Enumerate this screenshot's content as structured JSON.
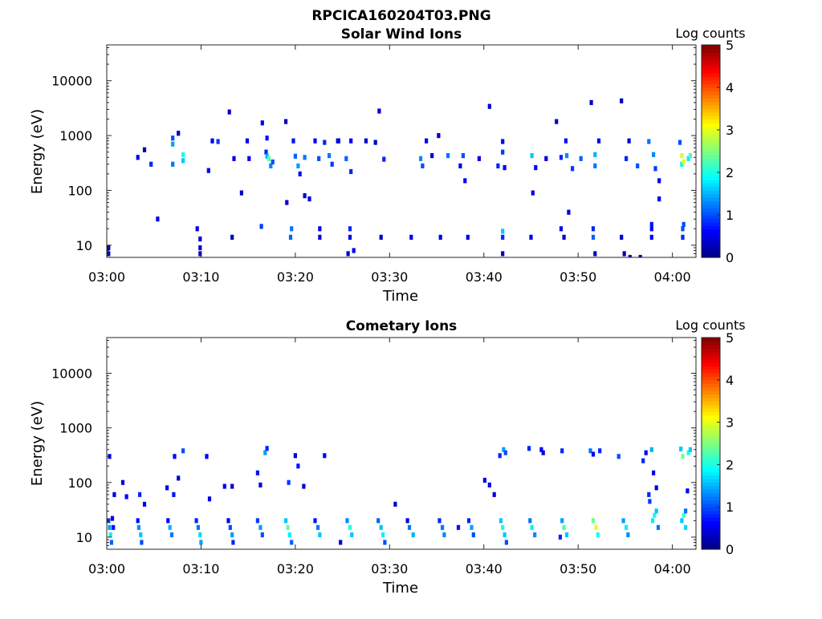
{
  "title": "RPCICA160204T03.PNG",
  "chart_data": [
    {
      "type": "heatmap",
      "title": "Solar Wind Ions",
      "xlabel": "Time",
      "ylabel": "Energy (eV)",
      "x_ticks": [
        "03:00",
        "03:10",
        "03:20",
        "03:30",
        "03:40",
        "03:50",
        "04:00"
      ],
      "x_tick_minutes": [
        0,
        10,
        20,
        30,
        40,
        50,
        60
      ],
      "xlim_minutes": [
        0,
        62.5
      ],
      "y_scale": "log",
      "y_ticks": [
        "10",
        "100",
        "1000",
        "10000"
      ],
      "y_tick_values": [
        10,
        100,
        1000,
        10000
      ],
      "ylim": [
        6,
        45000
      ],
      "colorbar": {
        "label": "Log counts",
        "ticks": [
          "0",
          "1",
          "2",
          "3",
          "4",
          "5"
        ],
        "range": [
          0,
          5
        ],
        "colormap": "jet"
      },
      "cells": [
        [
          0.2,
          7,
          0.3
        ],
        [
          0.2,
          9,
          0.3
        ],
        [
          9.9,
          7,
          0.4
        ],
        [
          9.9,
          9,
          0.4
        ],
        [
          9.9,
          13,
          0.4
        ],
        [
          9.6,
          20,
          0.5
        ],
        [
          13.3,
          14,
          0.3
        ],
        [
          16.4,
          22,
          0.9
        ],
        [
          19.5,
          14,
          1.1
        ],
        [
          19.6,
          20,
          1.2
        ],
        [
          22.6,
          14,
          0.5
        ],
        [
          22.6,
          20,
          0.5
        ],
        [
          25.6,
          7,
          0.3
        ],
        [
          25.8,
          20,
          0.8
        ],
        [
          25.8,
          14,
          0.6
        ],
        [
          29.1,
          14,
          0.4
        ],
        [
          32.3,
          14,
          0.5
        ],
        [
          35.4,
          14,
          0.6
        ],
        [
          38.3,
          14,
          0.5
        ],
        [
          42.0,
          14,
          0.8
        ],
        [
          42.0,
          18,
          1.6
        ],
        [
          42.0,
          7,
          0.3
        ],
        [
          45.0,
          14,
          0.5
        ],
        [
          48.2,
          20,
          0.6
        ],
        [
          48.5,
          14,
          0.4
        ],
        [
          51.6,
          20,
          0.8
        ],
        [
          51.6,
          14,
          1.1
        ],
        [
          51.8,
          7,
          0.3
        ],
        [
          54.6,
          14,
          0.4
        ],
        [
          54.9,
          7,
          0.3
        ],
        [
          57.8,
          20,
          0.6
        ],
        [
          57.8,
          24,
          0.7
        ],
        [
          57.8,
          14,
          0.6
        ],
        [
          61.1,
          20,
          1.0
        ],
        [
          61.1,
          14,
          0.8
        ],
        [
          61.2,
          24,
          1.0
        ],
        [
          3.3,
          400,
          0.5
        ],
        [
          4.0,
          550,
          0.3
        ],
        [
          4.7,
          300,
          0.8
        ],
        [
          7.0,
          900,
          1.0
        ],
        [
          7.0,
          700,
          1.4
        ],
        [
          7.0,
          300,
          1.2
        ],
        [
          7.6,
          1100,
          0.4
        ],
        [
          8.1,
          350,
          1.6
        ],
        [
          8.1,
          450,
          2.0
        ],
        [
          10.8,
          230,
          0.6
        ],
        [
          11.2,
          800,
          0.6
        ],
        [
          11.8,
          780,
          0.9
        ],
        [
          13.0,
          2700,
          0.4
        ],
        [
          13.5,
          380,
          0.5
        ],
        [
          14.3,
          90,
          0.4
        ],
        [
          14.9,
          800,
          0.6
        ],
        [
          15.1,
          380,
          0.6
        ],
        [
          16.5,
          1700,
          0.5
        ],
        [
          16.9,
          500,
          0.8
        ],
        [
          17.0,
          420,
          1.5
        ],
        [
          17.2,
          380,
          2.3
        ],
        [
          17.4,
          280,
          1.3
        ],
        [
          17.6,
          330,
          1.0
        ],
        [
          17.0,
          900,
          0.7
        ],
        [
          19.0,
          1800,
          0.3
        ],
        [
          19.1,
          60,
          0.4
        ],
        [
          19.8,
          800,
          0.7
        ],
        [
          20.0,
          420,
          1.1
        ],
        [
          20.3,
          280,
          1.4
        ],
        [
          20.5,
          200,
          0.7
        ],
        [
          21.0,
          80,
          0.4
        ],
        [
          21.0,
          400,
          1.2
        ],
        [
          21.5,
          70,
          0.5
        ],
        [
          22.1,
          800,
          0.6
        ],
        [
          22.5,
          380,
          1.0
        ],
        [
          23.1,
          750,
          0.8
        ],
        [
          23.6,
          430,
          1.2
        ],
        [
          23.9,
          300,
          0.9
        ],
        [
          24.6,
          800,
          0.6
        ],
        [
          25.4,
          380,
          1.1
        ],
        [
          25.9,
          220,
          0.8
        ],
        [
          25.9,
          800,
          0.6
        ],
        [
          27.5,
          800,
          0.4
        ],
        [
          28.5,
          750,
          0.3
        ],
        [
          28.9,
          2800,
          0.4
        ],
        [
          29.4,
          370,
          0.8
        ],
        [
          33.3,
          380,
          1.3
        ],
        [
          33.5,
          280,
          1.0
        ],
        [
          33.9,
          800,
          0.5
        ],
        [
          35.2,
          1000,
          0.3
        ],
        [
          36.2,
          430,
          1.2
        ],
        [
          37.5,
          280,
          0.5
        ],
        [
          37.8,
          430,
          1.0
        ],
        [
          38.0,
          150,
          0.6
        ],
        [
          39.5,
          380,
          0.5
        ],
        [
          40.6,
          3400,
          0.4
        ],
        [
          41.5,
          280,
          0.8
        ],
        [
          42.0,
          500,
          0.9
        ],
        [
          42.2,
          260,
          0.6
        ],
        [
          42.0,
          780,
          0.6
        ],
        [
          45.1,
          430,
          1.6
        ],
        [
          45.2,
          90,
          0.5
        ],
        [
          45.5,
          260,
          0.6
        ],
        [
          46.6,
          380,
          0.5
        ],
        [
          47.7,
          1800,
          0.4
        ],
        [
          48.2,
          400,
          0.8
        ],
        [
          48.7,
          800,
          0.7
        ],
        [
          48.8,
          430,
          1.3
        ],
        [
          49.0,
          40,
          0.4
        ],
        [
          49.4,
          250,
          0.9
        ],
        [
          50.3,
          380,
          1.1
        ],
        [
          51.4,
          4000,
          0.4
        ],
        [
          51.8,
          450,
          1.5
        ],
        [
          51.8,
          280,
          1.2
        ],
        [
          52.2,
          800,
          0.6
        ],
        [
          54.6,
          4300,
          0.3
        ],
        [
          55.1,
          380,
          0.8
        ],
        [
          55.4,
          800,
          0.5
        ],
        [
          56.3,
          280,
          1.0
        ],
        [
          57.5,
          780,
          1.2
        ],
        [
          58.0,
          450,
          1.3
        ],
        [
          58.2,
          250,
          0.9
        ],
        [
          58.6,
          150,
          0.5
        ],
        [
          58.6,
          70,
          0.5
        ],
        [
          60.8,
          750,
          1.0
        ],
        [
          61.0,
          430,
          2.9
        ],
        [
          61.0,
          300,
          1.8
        ],
        [
          61.2,
          330,
          3.0
        ],
        [
          61.7,
          380,
          1.8
        ],
        [
          61.9,
          430,
          2.2
        ],
        [
          55.5,
          6,
          0.4
        ],
        [
          56.6,
          6,
          0.3
        ],
        [
          26.2,
          8,
          0.5
        ],
        [
          5.4,
          30,
          0.6
        ],
        [
          24.5,
          800,
          0.5
        ],
        [
          34.5,
          430,
          0.4
        ]
      ]
    },
    {
      "type": "heatmap",
      "title": "Cometary Ions",
      "xlabel": "Time",
      "ylabel": "Energy (eV)",
      "x_ticks": [
        "03:00",
        "03:10",
        "03:20",
        "03:30",
        "03:40",
        "03:50",
        "04:00"
      ],
      "x_tick_minutes": [
        0,
        10,
        20,
        30,
        40,
        50,
        60
      ],
      "xlim_minutes": [
        0,
        62.5
      ],
      "y_scale": "log",
      "y_ticks": [
        "10",
        "100",
        "1000",
        "10000"
      ],
      "y_tick_values": [
        10,
        100,
        1000,
        10000
      ],
      "ylim": [
        6,
        45000
      ],
      "colorbar": {
        "label": "Log counts",
        "ticks": [
          "0",
          "1",
          "2",
          "3",
          "4",
          "5"
        ],
        "range": [
          0,
          5
        ],
        "colormap": "jet"
      },
      "cells": [
        [
          0.2,
          20,
          0.9
        ],
        [
          0.3,
          15,
          1.4
        ],
        [
          0.4,
          11,
          1.8
        ],
        [
          0.5,
          8,
          1.1
        ],
        [
          0.7,
          15,
          0.7
        ],
        [
          0.6,
          22,
          0.5
        ],
        [
          3.3,
          20,
          0.7
        ],
        [
          3.4,
          15,
          1.3
        ],
        [
          3.6,
          11,
          1.6
        ],
        [
          3.7,
          8,
          1.0
        ],
        [
          6.5,
          20,
          0.6
        ],
        [
          6.7,
          15,
          1.5
        ],
        [
          6.9,
          11,
          1.2
        ],
        [
          9.5,
          20,
          0.8
        ],
        [
          9.7,
          15,
          1.2
        ],
        [
          9.9,
          11,
          1.7
        ],
        [
          10.0,
          8,
          1.4
        ],
        [
          12.9,
          20,
          0.5
        ],
        [
          13.1,
          15,
          1.0
        ],
        [
          13.3,
          11,
          1.4
        ],
        [
          13.4,
          8,
          0.8
        ],
        [
          16.0,
          20,
          0.9
        ],
        [
          16.3,
          15,
          1.4
        ],
        [
          16.5,
          11,
          1.0
        ],
        [
          19.0,
          20,
          1.6
        ],
        [
          19.2,
          15,
          2.4
        ],
        [
          19.4,
          11,
          1.8
        ],
        [
          19.6,
          8,
          1.1
        ],
        [
          22.1,
          20,
          0.7
        ],
        [
          22.4,
          15,
          1.2
        ],
        [
          22.6,
          11,
          1.6
        ],
        [
          25.5,
          20,
          1.3
        ],
        [
          25.8,
          15,
          2.0
        ],
        [
          26.0,
          11,
          1.6
        ],
        [
          28.8,
          20,
          1.1
        ],
        [
          29.1,
          15,
          1.6
        ],
        [
          29.3,
          11,
          1.8
        ],
        [
          29.5,
          8,
          1.0
        ],
        [
          31.9,
          20,
          0.5
        ],
        [
          32.1,
          15,
          1.2
        ],
        [
          32.5,
          11,
          1.5
        ],
        [
          35.3,
          20,
          0.8
        ],
        [
          35.6,
          15,
          1.2
        ],
        [
          35.8,
          11,
          1.3
        ],
        [
          38.4,
          20,
          0.8
        ],
        [
          38.7,
          15,
          1.4
        ],
        [
          38.9,
          11,
          1.0
        ],
        [
          41.8,
          20,
          1.6
        ],
        [
          42.0,
          15,
          2.0
        ],
        [
          42.2,
          11,
          1.6
        ],
        [
          42.4,
          8,
          1.0
        ],
        [
          44.9,
          20,
          1.2
        ],
        [
          45.1,
          15,
          1.8
        ],
        [
          45.4,
          11,
          1.3
        ],
        [
          48.3,
          20,
          1.4
        ],
        [
          48.5,
          15,
          2.2
        ],
        [
          48.8,
          11,
          1.6
        ],
        [
          51.6,
          20,
          2.4
        ],
        [
          51.9,
          15,
          3.0
        ],
        [
          52.1,
          11,
          2.0
        ],
        [
          54.8,
          20,
          1.4
        ],
        [
          55.1,
          15,
          1.8
        ],
        [
          55.3,
          11,
          1.3
        ],
        [
          57.9,
          20,
          1.8
        ],
        [
          58.1,
          25,
          2.0
        ],
        [
          58.3,
          30,
          1.6
        ],
        [
          58.5,
          15,
          1.2
        ],
        [
          61.0,
          20,
          1.6
        ],
        [
          61.2,
          25,
          2.2
        ],
        [
          61.4,
          15,
          1.7
        ],
        [
          61.4,
          30,
          1.2
        ],
        [
          0.3,
          300,
          0.6
        ],
        [
          0.8,
          60,
          0.5
        ],
        [
          1.7,
          100,
          0.4
        ],
        [
          2.1,
          55,
          0.6
        ],
        [
          3.5,
          60,
          0.8
        ],
        [
          4.0,
          40,
          0.6
        ],
        [
          6.4,
          80,
          0.5
        ],
        [
          7.1,
          60,
          0.7
        ],
        [
          7.2,
          300,
          0.6
        ],
        [
          7.6,
          120,
          0.4
        ],
        [
          8.1,
          380,
          1.0
        ],
        [
          10.6,
          300,
          0.6
        ],
        [
          10.9,
          50,
          0.5
        ],
        [
          12.5,
          85,
          0.5
        ],
        [
          13.3,
          85,
          0.4
        ],
        [
          16.0,
          150,
          0.7
        ],
        [
          16.3,
          90,
          0.4
        ],
        [
          16.8,
          350,
          1.4
        ],
        [
          17.0,
          420,
          0.8
        ],
        [
          19.3,
          100,
          0.9
        ],
        [
          20.0,
          310,
          0.4
        ],
        [
          20.3,
          200,
          0.7
        ],
        [
          20.9,
          85,
          0.4
        ],
        [
          23.1,
          310,
          0.6
        ],
        [
          30.6,
          40,
          0.4
        ],
        [
          40.1,
          110,
          0.5
        ],
        [
          40.6,
          90,
          0.6
        ],
        [
          41.1,
          60,
          0.5
        ],
        [
          41.7,
          310,
          0.8
        ],
        [
          42.1,
          400,
          1.4
        ],
        [
          42.3,
          350,
          1.0
        ],
        [
          44.8,
          420,
          0.8
        ],
        [
          46.1,
          400,
          0.6
        ],
        [
          46.3,
          350,
          0.5
        ],
        [
          48.3,
          380,
          0.8
        ],
        [
          51.3,
          380,
          1.2
        ],
        [
          51.6,
          330,
          0.6
        ],
        [
          52.3,
          380,
          0.8
        ],
        [
          54.3,
          300,
          1.0
        ],
        [
          56.9,
          250,
          0.8
        ],
        [
          57.2,
          350,
          0.6
        ],
        [
          57.5,
          60,
          0.8
        ],
        [
          57.6,
          45,
          0.9
        ],
        [
          57.8,
          400,
          1.5
        ],
        [
          58.0,
          150,
          0.6
        ],
        [
          58.3,
          80,
          0.5
        ],
        [
          60.9,
          410,
          1.6
        ],
        [
          61.1,
          300,
          2.4
        ],
        [
          61.7,
          350,
          2.0
        ],
        [
          61.9,
          400,
          1.6
        ],
        [
          61.6,
          70,
          0.6
        ],
        [
          48.1,
          10,
          0.8
        ],
        [
          24.8,
          8,
          0.4
        ],
        [
          37.3,
          15,
          0.7
        ]
      ]
    }
  ]
}
